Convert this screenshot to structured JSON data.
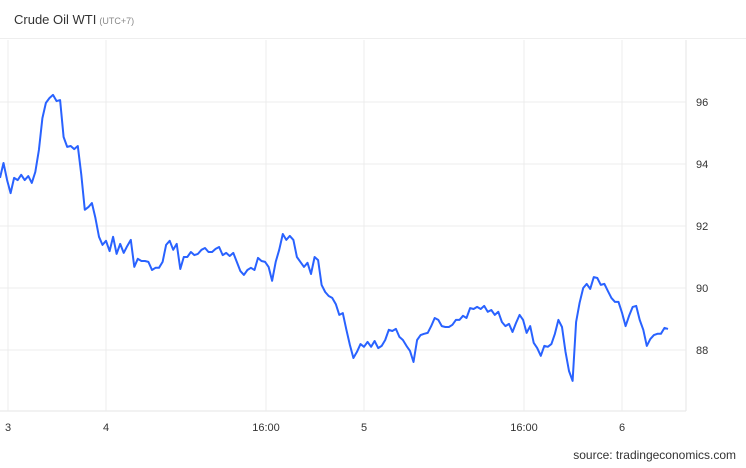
{
  "header": {
    "title": "Crude Oil WTI",
    "timezone": "(UTC+7)"
  },
  "source": "source: tradingeconomics.com",
  "chart_data": {
    "type": "line",
    "title": "Crude Oil WTI",
    "line_color": "#2962ff",
    "grid": true,
    "ylim": [
      86.03,
      98.0
    ],
    "y_ticks": [
      88,
      90,
      92,
      94,
      96
    ],
    "x_ticks": [
      "3",
      "4",
      "16:00",
      "5",
      "16:00",
      "6"
    ],
    "series": [
      {
        "values": [
          93.55,
          94.03,
          93.48,
          93.06,
          93.55,
          93.48,
          93.65,
          93.48,
          93.61,
          93.39,
          93.74,
          94.45,
          95.48,
          95.97,
          96.13,
          96.23,
          96.03,
          96.06,
          94.87,
          94.55,
          94.58,
          94.48,
          94.58,
          93.65,
          92.52,
          92.61,
          92.74,
          92.26,
          91.65,
          91.39,
          91.52,
          91.19,
          91.65,
          91.1,
          91.42,
          91.13,
          91.35,
          91.55,
          90.68,
          90.94,
          90.87,
          90.87,
          90.84,
          90.58,
          90.65,
          90.65,
          90.84,
          91.39,
          91.52,
          91.23,
          91.42,
          90.61,
          91.0,
          91.0,
          91.16,
          91.06,
          91.1,
          91.23,
          91.29,
          91.16,
          91.16,
          91.26,
          91.32,
          91.06,
          91.13,
          91.03,
          91.13,
          90.84,
          90.55,
          90.42,
          90.58,
          90.65,
          90.58,
          90.97,
          90.87,
          90.84,
          90.68,
          90.23,
          90.84,
          91.23,
          91.74,
          91.55,
          91.68,
          91.55,
          91.0,
          90.84,
          90.68,
          90.81,
          90.45,
          91.0,
          90.9,
          90.1,
          89.87,
          89.74,
          89.68,
          89.48,
          89.13,
          89.19,
          88.65,
          88.16,
          87.74,
          87.94,
          88.19,
          88.1,
          88.26,
          88.1,
          88.29,
          88.06,
          88.13,
          88.32,
          88.65,
          88.61,
          88.68,
          88.42,
          88.32,
          88.13,
          87.97,
          87.61,
          88.32,
          88.48,
          88.52,
          88.55,
          88.77,
          89.03,
          88.97,
          88.77,
          88.74,
          88.74,
          88.81,
          88.97,
          88.97,
          89.1,
          89.03,
          89.35,
          89.32,
          89.39,
          89.32,
          89.42,
          89.23,
          89.29,
          89.13,
          89.23,
          88.9,
          88.77,
          88.84,
          88.58,
          88.87,
          89.13,
          88.97,
          88.55,
          88.77,
          88.23,
          88.06,
          87.81,
          88.13,
          88.1,
          88.19,
          88.52,
          88.97,
          88.74,
          87.94,
          87.32,
          87.0,
          88.9,
          89.52,
          90.0,
          90.13,
          89.97,
          90.35,
          90.32,
          90.1,
          90.13,
          89.9,
          89.68,
          89.55,
          89.55,
          89.19,
          88.77,
          89.1,
          89.39,
          89.42,
          88.97,
          88.65,
          88.13,
          88.35,
          88.48,
          88.52,
          88.52,
          88.71,
          88.68
        ]
      }
    ]
  }
}
